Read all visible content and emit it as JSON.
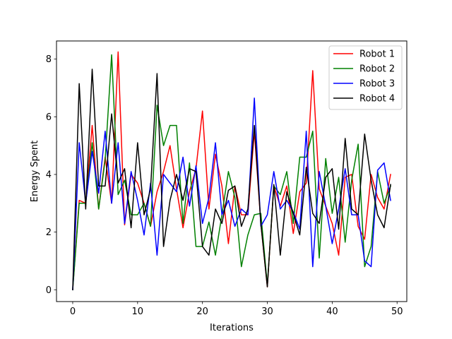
{
  "chart_data": {
    "type": "line",
    "xlabel": "Iterations",
    "ylabel": "Energy Spent",
    "xlim": [
      -2.5,
      51.5
    ],
    "ylim": [
      -0.41,
      8.63
    ],
    "xticks": [
      0,
      10,
      20,
      30,
      40,
      50
    ],
    "yticks": [
      0,
      2,
      4,
      6,
      8
    ],
    "grid": false,
    "legend_position": "top-right",
    "x": [
      0,
      1,
      2,
      3,
      4,
      5,
      6,
      7,
      8,
      9,
      10,
      11,
      12,
      13,
      14,
      15,
      16,
      17,
      18,
      19,
      20,
      21,
      22,
      23,
      24,
      25,
      26,
      27,
      28,
      29,
      30,
      31,
      32,
      33,
      34,
      35,
      36,
      37,
      38,
      39,
      40,
      41,
      42,
      43,
      44,
      45,
      46,
      47,
      48,
      49
    ],
    "series": [
      {
        "name": "Robot 1",
        "color": "#ff0000",
        "values": [
          0,
          3.1,
          3.0,
          5.7,
          2.8,
          4.6,
          3.0,
          8.25,
          2.25,
          4.0,
          3.7,
          3.0,
          2.2,
          3.4,
          4.1,
          5.0,
          3.5,
          2.15,
          3.4,
          4.2,
          6.2,
          2.8,
          4.7,
          3.6,
          1.6,
          3.6,
          2.6,
          2.6,
          5.5,
          2.3,
          0.1,
          3.6,
          2.9,
          3.6,
          1.95,
          3.4,
          3.7,
          7.6,
          3.5,
          2.9,
          2.3,
          1.2,
          3.9,
          4.0,
          2.2,
          1.75,
          4.0,
          3.2,
          2.8,
          4.0
        ]
      },
      {
        "name": "Robot 2",
        "color": "#008000",
        "values": [
          0,
          3.0,
          3.0,
          5.1,
          2.8,
          4.5,
          8.15,
          3.3,
          3.8,
          2.6,
          2.6,
          3.0,
          2.2,
          6.4,
          5.0,
          5.7,
          5.7,
          2.3,
          4.4,
          1.5,
          1.5,
          2.35,
          1.2,
          2.6,
          4.1,
          3.2,
          0.8,
          1.9,
          2.6,
          2.65,
          0.15,
          3.6,
          3.3,
          4.1,
          2.3,
          4.6,
          4.6,
          5.5,
          1.1,
          4.55,
          2.65,
          3.9,
          1.65,
          3.8,
          5.05,
          0.8,
          1.5,
          4.1,
          3.0,
          3.6
        ]
      },
      {
        "name": "Robot 3",
        "color": "#0000ff",
        "values": [
          0,
          5.1,
          3.0,
          4.8,
          3.35,
          5.5,
          3.0,
          5.1,
          2.3,
          4.1,
          3.1,
          1.9,
          3.7,
          1.2,
          4.0,
          3.7,
          3.4,
          4.6,
          2.9,
          4.3,
          2.3,
          3.2,
          5.1,
          2.6,
          3.1,
          2.2,
          2.8,
          2.6,
          6.65,
          2.2,
          2.6,
          4.1,
          2.8,
          3.1,
          2.7,
          2.1,
          5.5,
          0.8,
          4.1,
          2.9,
          1.6,
          2.8,
          4.2,
          2.6,
          2.6,
          1.0,
          0.8,
          4.15,
          4.4,
          3.1
        ]
      },
      {
        "name": "Robot 4",
        "color": "#000000",
        "values": [
          0,
          7.15,
          2.8,
          7.65,
          3.6,
          3.6,
          6.1,
          3.7,
          4.2,
          2.15,
          5.1,
          2.6,
          3.5,
          7.5,
          1.5,
          3.1,
          4.0,
          3.1,
          4.2,
          4.1,
          1.5,
          1.2,
          2.8,
          2.3,
          3.45,
          3.6,
          2.2,
          2.8,
          5.7,
          2.3,
          0.1,
          3.65,
          1.2,
          3.4,
          2.65,
          1.9,
          4.25,
          2.65,
          2.3,
          3.9,
          4.2,
          2.1,
          5.25,
          2.8,
          2.6,
          5.4,
          3.8,
          2.6,
          2.15,
          3.65
        ]
      }
    ]
  }
}
